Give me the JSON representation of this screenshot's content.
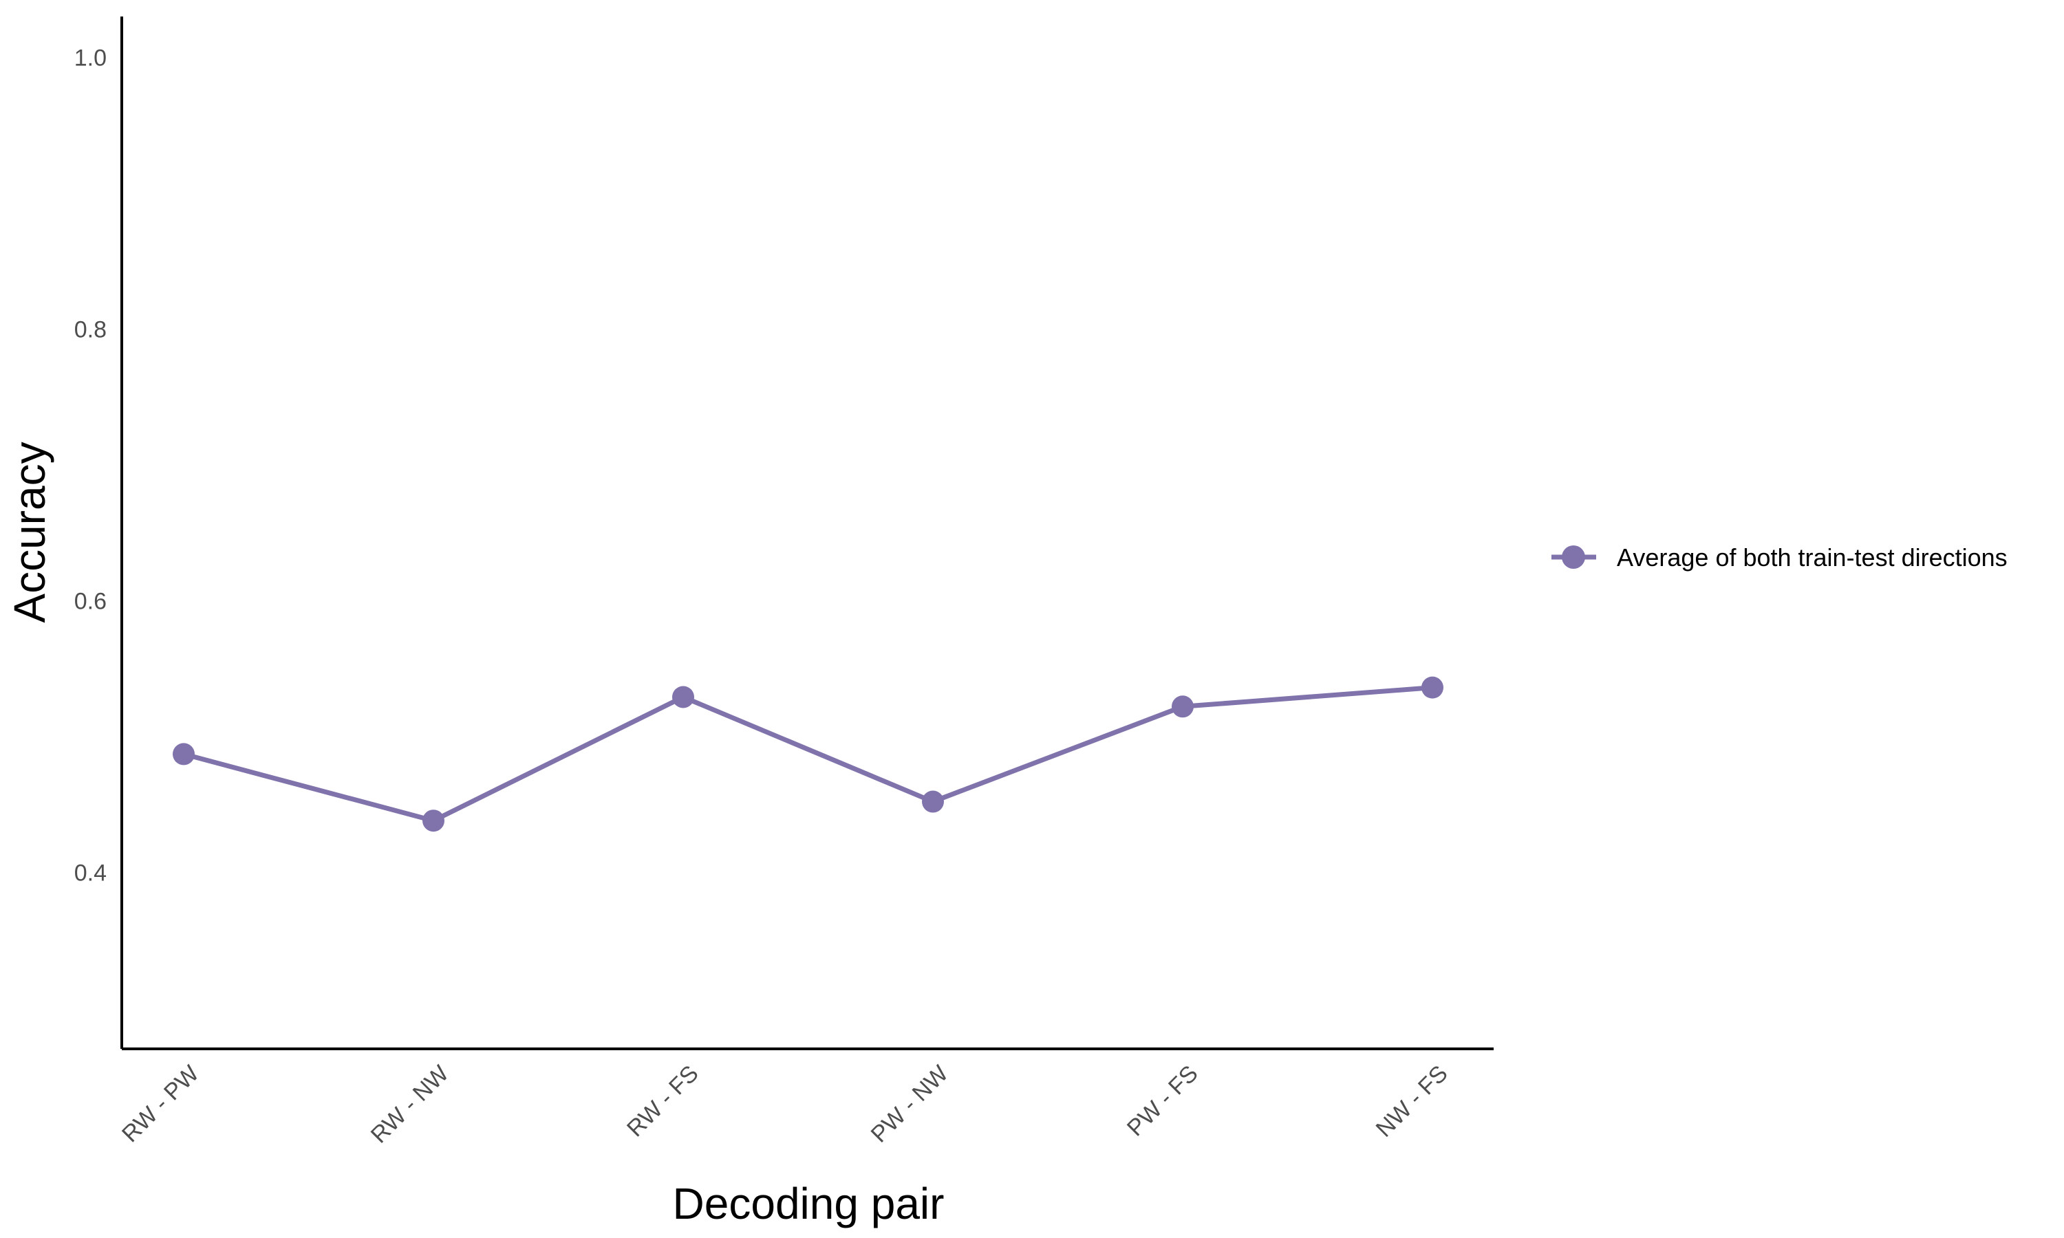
{
  "colors": {
    "series": "#8073ac",
    "axis": "#000000",
    "tick_text": "#4d4d4d",
    "background": "#ffffff"
  },
  "legend": {
    "label": "Average of both train-test directions",
    "marker_icon": "line-point-icon",
    "placement": "right"
  },
  "chart_data": {
    "type": "line",
    "xlabel": "Decoding pair",
    "ylabel": "Accuracy",
    "categories": [
      "RW - PW",
      "RW - NW",
      "RW - FS",
      "PW - NW",
      "PW - FS",
      "NW - FS"
    ],
    "series": [
      {
        "name": "Average of both train-test directions",
        "values": [
          0.487,
          0.438,
          0.529,
          0.452,
          0.522,
          0.536
        ]
      }
    ],
    "ylim": [
      0.27,
      1.03
    ],
    "yticks": [
      0.4,
      0.6,
      0.8,
      1.0
    ],
    "ytick_labels": [
      "0.4",
      "0.6",
      "0.8",
      "1.0"
    ],
    "grid": false,
    "legend_position": "right"
  }
}
